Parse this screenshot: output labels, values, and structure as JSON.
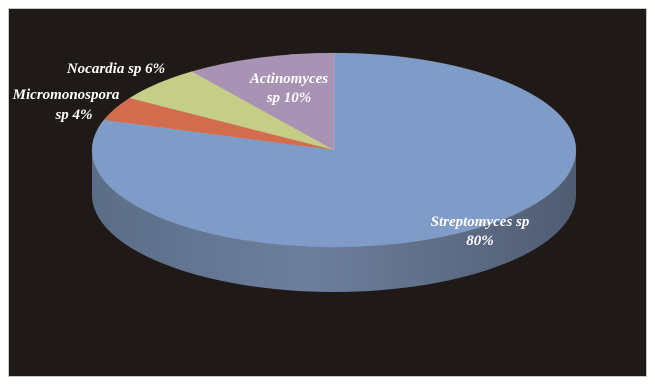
{
  "chart_data": {
    "type": "pie",
    "style": "3d",
    "slices": [
      {
        "label": "Streptomyces sp",
        "value": 80,
        "value_text": "80%",
        "color": "#7f9bc8",
        "label_color": "#ffffff"
      },
      {
        "label": "Micromonospora sp",
        "value": 4,
        "value_text": "4%",
        "color": "#d26c4c",
        "label_color": "#ffffff"
      },
      {
        "label": "Nocardia sp",
        "value": 6,
        "value_text": "6%",
        "color": "#c5cd86",
        "label_color": "#ffffff"
      },
      {
        "label": "Actinomyces sp",
        "value": 10,
        "value_text": "10%",
        "color": "#a993b4",
        "label_color": "#ffffff"
      }
    ],
    "labels": {
      "streptomyces_line1": "Streptomyces sp",
      "streptomyces_line2": "80%",
      "micromonospora_line1": "Micromonospora",
      "micromonospora_line2": "sp 4%",
      "nocardia_line1": "Nocardia sp 6%",
      "actinomyces_line1": "Actinomyces",
      "actinomyces_line2": "sp 10%"
    },
    "legend": "none",
    "background_color": "#1f1a17"
  }
}
